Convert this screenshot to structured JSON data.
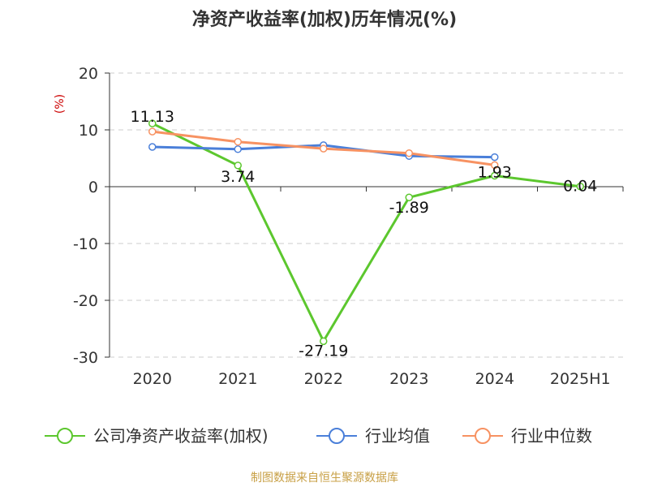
{
  "chart_data": {
    "type": "line",
    "title": "净资产收益率(加权)历年情况(%)",
    "ylabel": "(%)",
    "xlabel": "",
    "categories": [
      "2020",
      "2021",
      "2022",
      "2023",
      "2024",
      "2025H1"
    ],
    "y_ticks": [
      "20",
      "10",
      "0",
      "-10",
      "-20",
      "-30"
    ],
    "ylim": [
      -30,
      20
    ],
    "grid": true,
    "legend_position": "bottom",
    "series": [
      {
        "name": "公司净资产收益率(加权)",
        "color": "#5cc72e",
        "values": [
          11.13,
          3.74,
          -27.19,
          -1.89,
          1.93,
          0.04
        ],
        "labels": [
          "11.13",
          "3.74",
          "-27.19",
          "-1.89",
          "1.93",
          "0.04"
        ]
      },
      {
        "name": "行业均值",
        "color": "#4a7fd9",
        "values": [
          7.0,
          6.6,
          7.3,
          5.4,
          5.2,
          null
        ]
      },
      {
        "name": "行业中位数",
        "color": "#f79262",
        "values": [
          9.7,
          7.9,
          6.7,
          5.9,
          3.8,
          null
        ]
      }
    ]
  },
  "footer": {
    "source": "制图数据来自恒生聚源数据库"
  }
}
